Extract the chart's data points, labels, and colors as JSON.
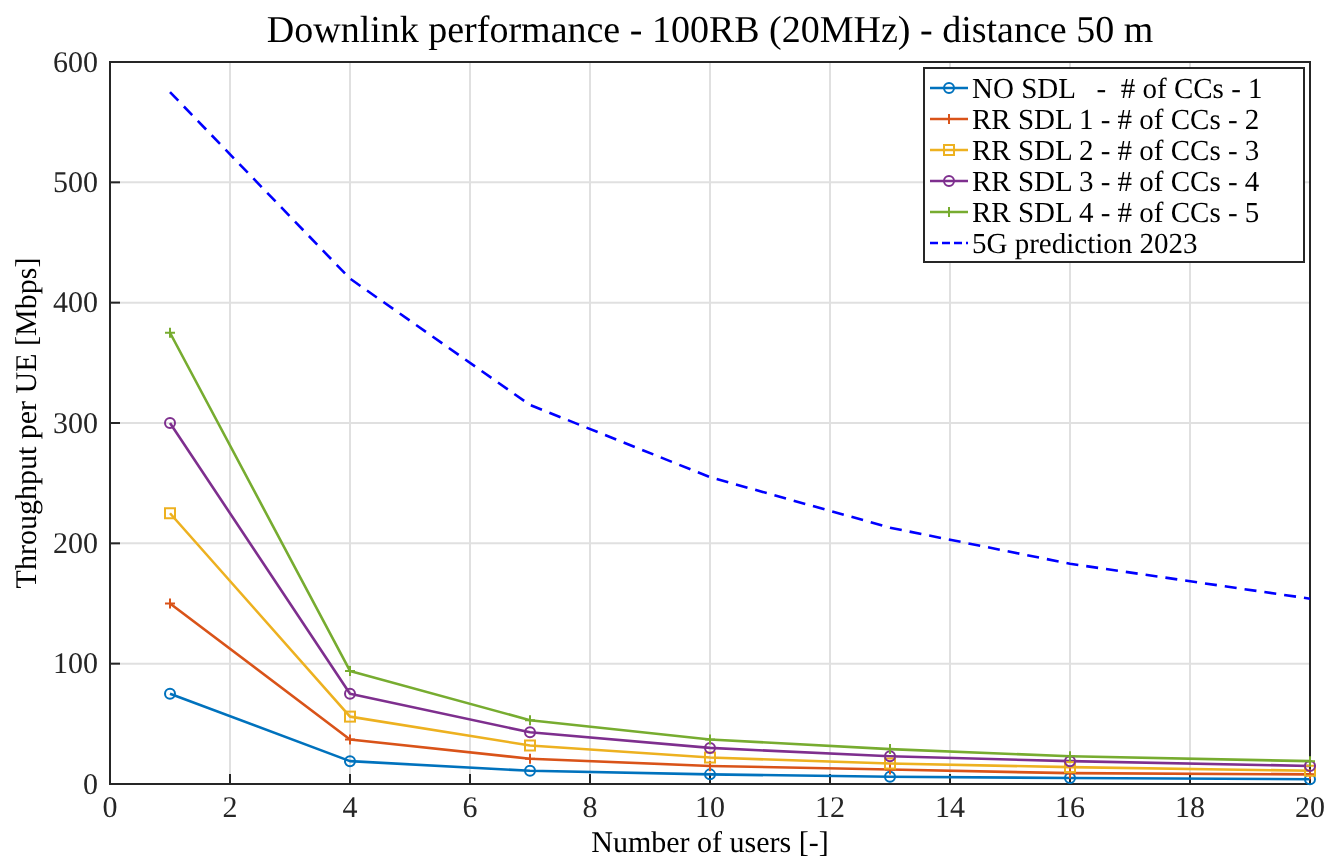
{
  "chart_data": {
    "type": "line",
    "title": "Downlink performance - 100RB (20MHz) - distance 50 m",
    "xlabel": "Number of users [-]",
    "ylabel": "Throughput per UE [Mbps]",
    "x": [
      1,
      4,
      7,
      10,
      13,
      16,
      20
    ],
    "series": [
      {
        "name": "NO SDL   -  # of CCs - 1",
        "color": "#0072bd",
        "marker": "circle",
        "line_style": "solid",
        "values": [
          75,
          19,
          11,
          8,
          6,
          5,
          4
        ]
      },
      {
        "name": "RR SDL 1 - # of CCs - 2",
        "color": "#d95319",
        "marker": "cross",
        "line_style": "solid",
        "values": [
          150,
          37,
          21,
          15,
          12,
          9,
          8
        ]
      },
      {
        "name": "RR SDL 2 - # of CCs - 3",
        "color": "#edb120",
        "marker": "square",
        "line_style": "solid",
        "values": [
          225,
          56,
          32,
          22,
          17,
          14,
          11
        ]
      },
      {
        "name": "RR SDL 3 - # of CCs - 4",
        "color": "#7e2f8e",
        "marker": "circle",
        "line_style": "solid",
        "values": [
          300,
          75,
          43,
          30,
          23,
          19,
          15
        ]
      },
      {
        "name": "RR SDL 4 - # of CCs - 5",
        "color": "#77ac30",
        "marker": "cross",
        "line_style": "solid",
        "values": [
          375,
          94,
          53,
          37,
          29,
          23,
          19
        ]
      },
      {
        "name": "5G prediction 2023",
        "color": "#0000ff",
        "marker": "none",
        "line_style": "dashed",
        "values": [
          575,
          420,
          315,
          255,
          213,
          183,
          154
        ]
      }
    ],
    "xlim": [
      0,
      20
    ],
    "xticks": [
      0,
      2,
      4,
      6,
      8,
      10,
      12,
      14,
      16,
      18,
      20
    ],
    "ylim": [
      0,
      600
    ],
    "yticks": [
      0,
      100,
      200,
      300,
      400,
      500,
      600
    ],
    "grid": true,
    "legend": "top right"
  }
}
